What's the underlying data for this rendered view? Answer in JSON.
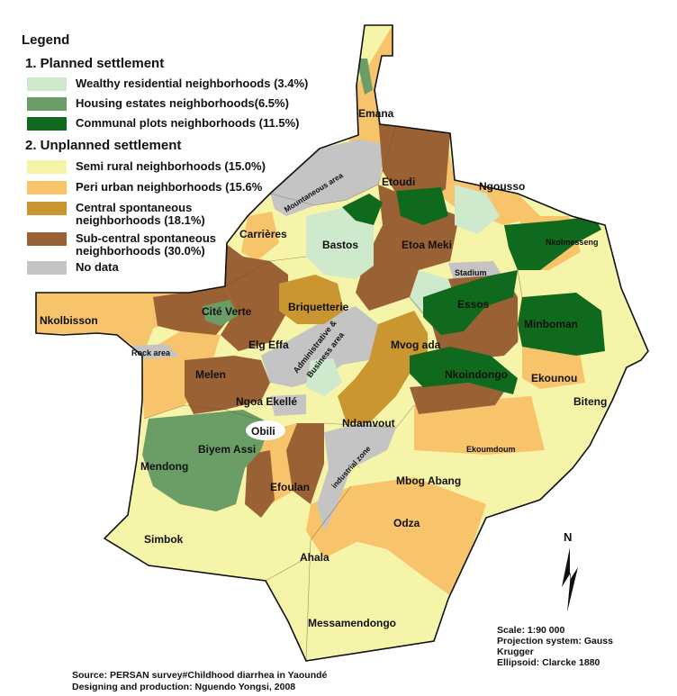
{
  "colors": {
    "wealthy": "#cfe9cc",
    "housing": "#6a9e66",
    "communal": "#0f6a1e",
    "semi_rural": "#f5f4a8",
    "peri_urban": "#f7c46c",
    "central_spont": "#c9962f",
    "sub_central": "#9a6234",
    "no_data": "#c4c4c4",
    "boundary": "#111111"
  },
  "legend": {
    "title": "Legend",
    "planned": {
      "title": "1. Planned  settlement",
      "items": [
        {
          "label": "Wealthy residential neighborhoods (3.4%)",
          "color": "#cfe9cc"
        },
        {
          "label": "Housing estates neighborhoods(6.5%)",
          "color": "#6a9e66"
        },
        {
          "label": "Communal plots neighborhoods (11.5%)",
          "color": "#0f6a1e"
        }
      ]
    },
    "unplanned": {
      "title": "2. Unplanned settlement",
      "items": [
        {
          "label": "Semi rural neighborhoods (15.0%)",
          "color": "#f5f4a8"
        },
        {
          "label": "Peri urban neighborhoods (15.6%",
          "color": "#f7c46c"
        },
        {
          "label": "Central spontaneous neighborhoods (18.1%)",
          "color": "#c9962f"
        },
        {
          "label": "Sub-central spontaneous neighborhoods (30.0%)",
          "color": "#9a6234"
        },
        {
          "label": "No data",
          "color": "#c4c4c4"
        }
      ]
    }
  },
  "places": {
    "emana": "Emana",
    "etoudi": "Etoudi",
    "ngousso": "Ngousso",
    "mountaneous": "Mountaneous area",
    "nkolmesseng": "Nkolmesseng",
    "bastos": "Bastos",
    "etoa_meki": "Etoa Meki",
    "carrieres": "Carrières",
    "stadium": "Stadium",
    "nkolbisson": "Nkolbisson",
    "cite_verte": "Cité Verte",
    "briquetterie": "Briquetterie",
    "essos": "Essos",
    "minboman": "Minboman",
    "rock": "Rock area",
    "elg_effa": "Elg Effa",
    "admin": "Administrative &",
    "business": "Business area",
    "mvog_ada": "Mvog ada",
    "melen": "Melen",
    "nkoindongo": "Nkoindongo",
    "ekounou": "Ekounou",
    "biteng": "Biteng",
    "ngoa_ekelle": "Ngoa Ekellé",
    "obili": "Obili",
    "ndamvout": "Ndamvout",
    "biyem_assi": "Biyem Assi",
    "ekoumdoum": "Ekoumdoum",
    "mendong": "Mendong",
    "industrial": "industrial zone",
    "mbog_abang": "Mbog Abang",
    "efoulan": "Efoulan",
    "odza": "Odza",
    "simbok": "Simbok",
    "ahala": "Ahala",
    "messamendongo": "Messamendongo"
  },
  "north": "N",
  "scale": {
    "scale": "Scale: 1:90 000",
    "projection": "Projection system: Gauss Krugger",
    "ellipsoid": "Ellipsoid: Clarcke 1880"
  },
  "source": {
    "line1": "Source:  PERSAN survey#Childhood diarrhea in Yaoundé",
    "line2": "Designing and production: Nguendo Yongsi, 2008"
  }
}
